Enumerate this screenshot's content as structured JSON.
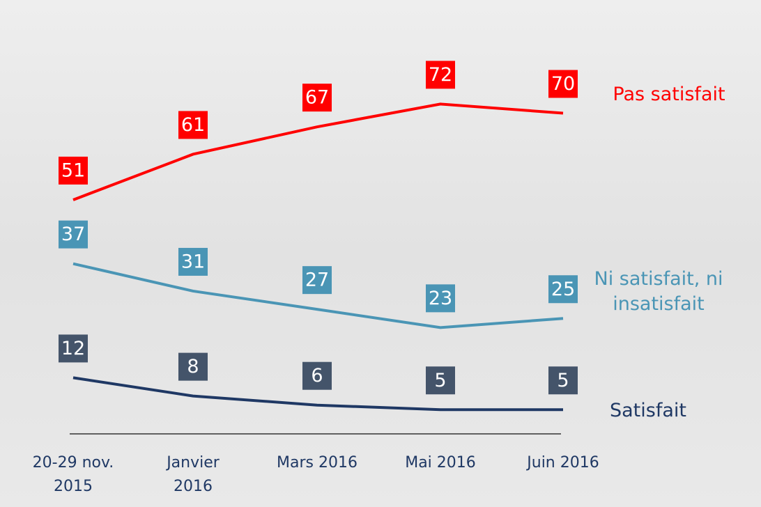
{
  "chart_data": {
    "type": "line",
    "categories": [
      "20-29 nov. 2015",
      "Janvier 2016",
      "Mars 2016",
      "Mai 2016",
      "Juin 2016"
    ],
    "series": [
      {
        "name": "Pas satisfait",
        "color": "#ff0000",
        "values": [
          51,
          61,
          67,
          72,
          70
        ]
      },
      {
        "name": "Ni satisfait, ni insatisfait",
        "color": "#4a95b5",
        "values": [
          37,
          31,
          27,
          23,
          25
        ]
      },
      {
        "name": "Satisfait",
        "color": "#1f3864",
        "values": [
          12,
          8,
          6,
          5,
          5
        ]
      }
    ],
    "ylim": [
      0,
      80
    ]
  }
}
